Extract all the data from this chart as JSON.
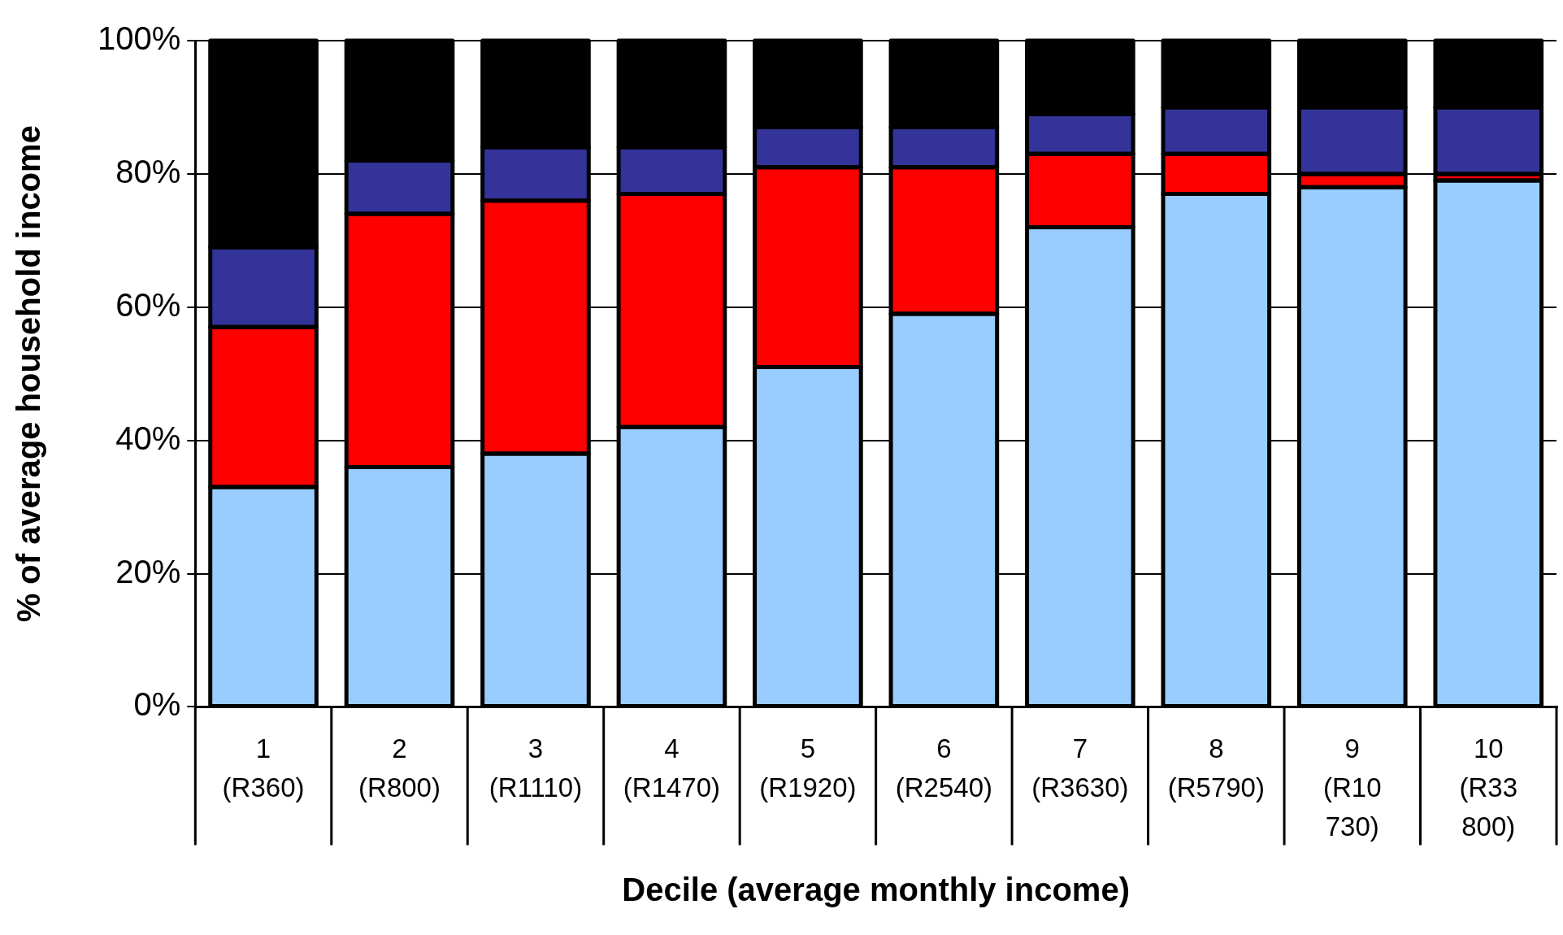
{
  "chart_data": {
    "type": "bar",
    "stacked": true,
    "xlabel": "Decile (average monthly income)",
    "ylabel": "% of average household income",
    "categories": [
      "1 (R360)",
      "2 (R800)",
      "3 (R1110)",
      "4 (R1470)",
      "5 (R1920)",
      "6 (R2540)",
      "7 (R3630)",
      "8 (R5790)",
      "9 (R10 730)",
      "10 (R33 800)"
    ],
    "series": [
      {
        "color": "#99ccff",
        "values": [
          33,
          36,
          38,
          42,
          51,
          59,
          72,
          77,
          78,
          79
        ]
      },
      {
        "color": "#ff0000",
        "values": [
          24,
          38,
          38,
          35,
          30,
          22,
          11,
          6,
          2,
          1
        ]
      },
      {
        "color": "#333399",
        "values": [
          12,
          8,
          8,
          7,
          6,
          6,
          6,
          7,
          10,
          10
        ]
      },
      {
        "color": "#000000",
        "values": [
          31,
          18,
          16,
          16,
          13,
          13,
          11,
          10,
          10,
          10
        ]
      }
    ],
    "ylim": [
      0,
      100
    ],
    "yticks": [
      {
        "value": 0,
        "label": "0%"
      },
      {
        "value": 20,
        "label": "20%"
      },
      {
        "value": 40,
        "label": "40%"
      },
      {
        "value": 60,
        "label": "60%"
      },
      {
        "value": 80,
        "label": "80%"
      },
      {
        "value": 100,
        "label": "100%"
      }
    ],
    "grid": "y",
    "legend": false
  }
}
